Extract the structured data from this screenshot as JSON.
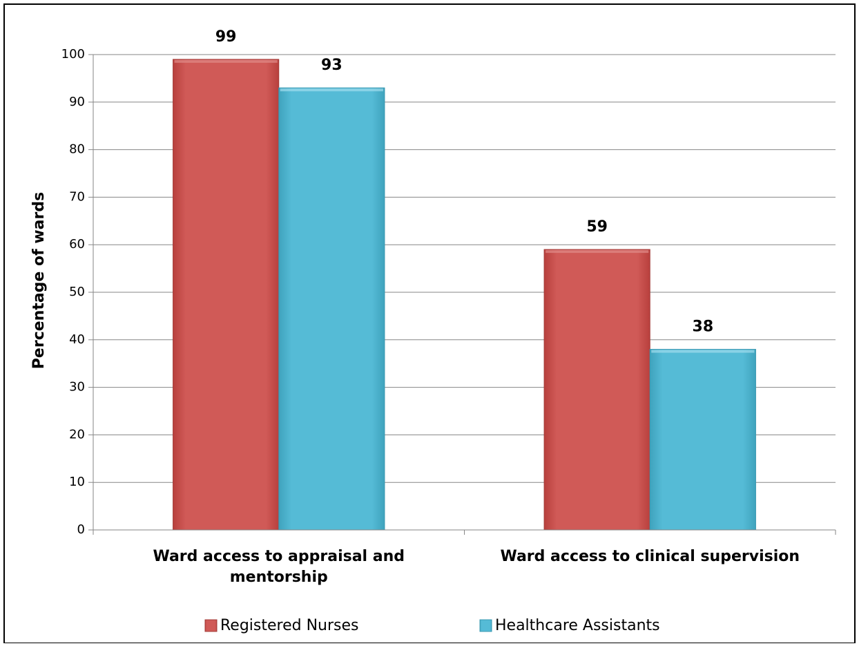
{
  "chart_data": {
    "type": "bar",
    "title": "",
    "xlabel": "",
    "ylabel": "Percentage of wards",
    "ylim": [
      0,
      100
    ],
    "yticks": [
      0,
      10,
      20,
      30,
      40,
      50,
      60,
      70,
      80,
      90,
      100
    ],
    "grid": true,
    "legend_position": "bottom",
    "categories": [
      [
        "Ward access to appraisal and",
        "mentorship"
      ],
      [
        "Ward access to clinical supervision"
      ]
    ],
    "series": [
      {
        "name": "Registered Nurses",
        "values": [
          99,
          59
        ],
        "color": "#c0504d"
      },
      {
        "name": "Healthcare Assistants",
        "values": [
          93,
          38
        ],
        "color": "#4bacc6"
      }
    ]
  }
}
